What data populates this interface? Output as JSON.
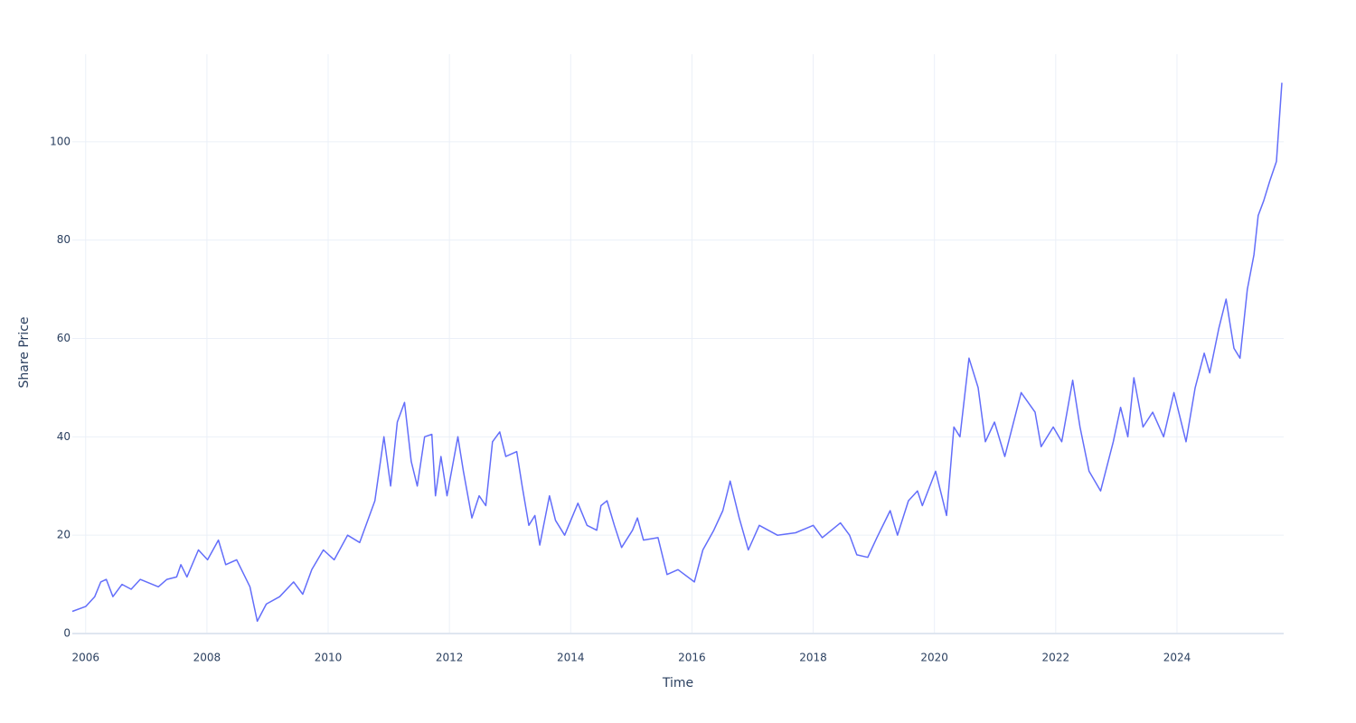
{
  "chart_data": {
    "type": "line",
    "x_label": "Time",
    "y_label": "Share Price",
    "x": [
      2005.78,
      2006.0,
      2006.15,
      2006.25,
      2006.34,
      2006.45,
      2006.6,
      2006.75,
      2006.9,
      2007.2,
      2007.34,
      2007.5,
      2007.57,
      2007.67,
      2007.86,
      2008.01,
      2008.19,
      2008.31,
      2008.49,
      2008.61,
      2008.71,
      2008.83,
      2008.98,
      2009.2,
      2009.43,
      2009.58,
      2009.73,
      2009.92,
      2010.1,
      2010.32,
      2010.52,
      2010.77,
      2010.92,
      2011.03,
      2011.14,
      2011.26,
      2011.37,
      2011.47,
      2011.59,
      2011.71,
      2011.77,
      2011.86,
      2011.96,
      2012.14,
      2012.23,
      2012.37,
      2012.49,
      2012.6,
      2012.71,
      2012.83,
      2012.93,
      2013.11,
      2013.2,
      2013.31,
      2013.41,
      2013.49,
      2013.65,
      2013.75,
      2013.9,
      2014.12,
      2014.27,
      2014.43,
      2014.5,
      2014.6,
      2014.72,
      2014.84,
      2015.02,
      2015.1,
      2015.2,
      2015.44,
      2015.59,
      2015.77,
      2016.04,
      2016.18,
      2016.36,
      2016.51,
      2016.63,
      2016.78,
      2016.93,
      2017.11,
      2017.41,
      2017.71,
      2018.0,
      2018.15,
      2018.45,
      2018.6,
      2018.72,
      2018.9,
      2019.05,
      2019.27,
      2019.39,
      2019.57,
      2019.72,
      2019.8,
      2020.02,
      2020.2,
      2020.32,
      2020.42,
      2020.57,
      2020.72,
      2020.84,
      2020.99,
      2021.16,
      2021.43,
      2021.66,
      2021.76,
      2021.96,
      2022.1,
      2022.28,
      2022.4,
      2022.55,
      2022.74,
      2022.95,
      2023.07,
      2023.19,
      2023.29,
      2023.44,
      2023.6,
      2023.78,
      2023.95,
      2024.15,
      2024.3,
      2024.45,
      2024.54,
      2024.69,
      2024.81,
      2024.94,
      2025.04,
      2025.16,
      2025.27,
      2025.34,
      2025.43,
      2025.53,
      2025.64,
      2025.73
    ],
    "series": [
      {
        "name": "Share Price",
        "color": "#636efa",
        "values": [
          4.5,
          5.5,
          7.5,
          10.5,
          11,
          7.5,
          10,
          9,
          11,
          9.5,
          11,
          11.5,
          14,
          11.5,
          17,
          15,
          19,
          14,
          15,
          12,
          9.5,
          2.5,
          6,
          7.5,
          10.5,
          8,
          13,
          17,
          15,
          20,
          18.5,
          27,
          40,
          30,
          43,
          47,
          35,
          30,
          40,
          40.5,
          28,
          36,
          28,
          40,
          33,
          23.5,
          28,
          26,
          39,
          41,
          36,
          37,
          30,
          22,
          24,
          18,
          28,
          23,
          20,
          26.5,
          22,
          21,
          26,
          27,
          22,
          17.5,
          21,
          23.5,
          19,
          19.5,
          12,
          13,
          10.5,
          17,
          21,
          25,
          31,
          23.5,
          17,
          22,
          20,
          20.5,
          22,
          19.5,
          22.5,
          20,
          16,
          15.5,
          19.5,
          25,
          20,
          27,
          29,
          26,
          33,
          24,
          42,
          40,
          56,
          50,
          39,
          43,
          36,
          49,
          45,
          38,
          42,
          39,
          51.5,
          42,
          33,
          29,
          39,
          46,
          40,
          52,
          42,
          45,
          40,
          49,
          39,
          50,
          57,
          53,
          62,
          68,
          58,
          56,
          70,
          77,
          85,
          88,
          92,
          96,
          112
        ]
      }
    ],
    "xlim": [
      2005.78,
      2025.76
    ],
    "ylim": [
      0,
      117.8
    ],
    "xticks": [
      2006,
      2008,
      2010,
      2012,
      2014,
      2016,
      2018,
      2020,
      2022,
      2024
    ],
    "yticks": [
      0,
      20,
      40,
      60,
      80,
      100
    ],
    "grid": true
  }
}
